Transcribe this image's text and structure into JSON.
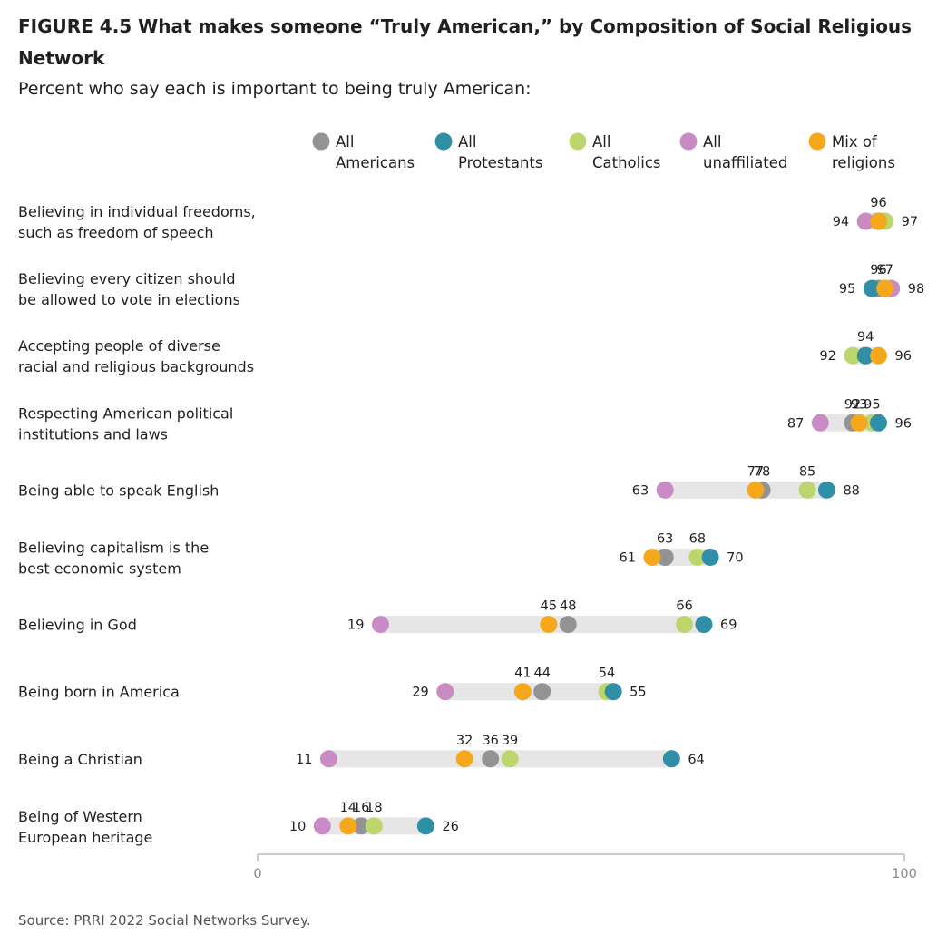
{
  "title": "FIGURE 4.5  What makes someone “Truly American,” by Composition of Social Religious Network",
  "subtitle": "Percent who say each is important to being truly American:",
  "source": "Source: PRRI 2022 Social Networks Survey.",
  "colors": {
    "range_bar": "#e6e6e6",
    "axis": "#bbbbbb"
  },
  "chart_data": {
    "type": "dot",
    "xlim": [
      0,
      100
    ],
    "x_ticks": [
      "0",
      "100"
    ],
    "legend_position": "top",
    "series": [
      {
        "key": "americans",
        "name": "All Americans",
        "legend_lines": [
          "All",
          "Americans"
        ],
        "color": "#939393"
      },
      {
        "key": "protestants",
        "name": "All Protestants",
        "legend_lines": [
          "All",
          "Protestants"
        ],
        "color": "#2f8fa6"
      },
      {
        "key": "catholics",
        "name": "All Catholics",
        "legend_lines": [
          "All",
          "Catholics"
        ],
        "color": "#bcd66d"
      },
      {
        "key": "unaffiliated",
        "name": "All unaffiliated",
        "legend_lines": [
          "All",
          "unaffiliated"
        ],
        "color": "#c98bc4"
      },
      {
        "key": "mix",
        "name": "Mix of religions",
        "legend_lines": [
          "Mix of",
          "religions"
        ],
        "color": "#f5a81c"
      }
    ],
    "rows": [
      {
        "label": [
          "Believing in individual freedoms,",
          "such as freedom of speech"
        ],
        "values": {
          "americans": 96,
          "protestants": 96,
          "catholics": 97,
          "unaffiliated": 94,
          "mix": 96
        },
        "labels": [
          {
            "text": "94",
            "value": 94,
            "pos": "left"
          },
          {
            "text": "96",
            "value": 96,
            "pos": "top"
          },
          {
            "text": "97",
            "value": 97,
            "pos": "right"
          }
        ]
      },
      {
        "label": [
          "Believing every citizen should",
          "be allowed to vote in elections"
        ],
        "values": {
          "americans": 96,
          "protestants": 95,
          "catholics": 97,
          "unaffiliated": 98,
          "mix": 97
        },
        "labels": [
          {
            "text": "95",
            "value": 95,
            "pos": "left"
          },
          {
            "text": "96",
            "value": 96,
            "pos": "top"
          },
          {
            "text": "97",
            "value": 97,
            "pos": "top"
          },
          {
            "text": "98",
            "value": 98,
            "pos": "right"
          }
        ]
      },
      {
        "label": [
          "Accepting people of diverse",
          "racial and religious backgrounds"
        ],
        "values": {
          "americans": 94,
          "protestants": 94,
          "catholics": 92,
          "unaffiliated": 94,
          "mix": 96
        },
        "labels": [
          {
            "text": "92",
            "value": 92,
            "pos": "left"
          },
          {
            "text": "94",
            "value": 94,
            "pos": "top"
          },
          {
            "text": "96",
            "value": 96,
            "pos": "right"
          }
        ]
      },
      {
        "label": [
          "Respecting American political",
          "institutions and laws"
        ],
        "values": {
          "americans": 92,
          "protestants": 96,
          "catholics": 95,
          "unaffiliated": 87,
          "mix": 93
        },
        "labels": [
          {
            "text": "87",
            "value": 87,
            "pos": "left"
          },
          {
            "text": "92",
            "value": 92,
            "pos": "top"
          },
          {
            "text": "93",
            "value": 93,
            "pos": "top"
          },
          {
            "text": "95",
            "value": 95,
            "pos": "top"
          },
          {
            "text": "96",
            "value": 96,
            "pos": "right"
          }
        ]
      },
      {
        "label": [
          "Being able to speak English"
        ],
        "values": {
          "americans": 78,
          "protestants": 88,
          "catholics": 85,
          "unaffiliated": 63,
          "mix": 77
        },
        "labels": [
          {
            "text": "63",
            "value": 63,
            "pos": "left"
          },
          {
            "text": "77",
            "value": 77,
            "pos": "top"
          },
          {
            "text": "78",
            "value": 78,
            "pos": "top"
          },
          {
            "text": "85",
            "value": 85,
            "pos": "top"
          },
          {
            "text": "88",
            "value": 88,
            "pos": "right"
          }
        ]
      },
      {
        "label": [
          "Believing capitalism is the",
          "best economic system"
        ],
        "values": {
          "americans": 63,
          "protestants": 70,
          "catholics": 68,
          "unaffiliated": 63,
          "mix": 61
        },
        "labels": [
          {
            "text": "61",
            "value": 61,
            "pos": "left"
          },
          {
            "text": "63",
            "value": 63,
            "pos": "top"
          },
          {
            "text": "68",
            "value": 68,
            "pos": "top"
          },
          {
            "text": "70",
            "value": 70,
            "pos": "right"
          }
        ]
      },
      {
        "label": [
          "Believing in God"
        ],
        "values": {
          "americans": 48,
          "protestants": 69,
          "catholics": 66,
          "unaffiliated": 19,
          "mix": 45
        },
        "labels": [
          {
            "text": "19",
            "value": 19,
            "pos": "left"
          },
          {
            "text": "45",
            "value": 45,
            "pos": "top"
          },
          {
            "text": "48",
            "value": 48,
            "pos": "top"
          },
          {
            "text": "66",
            "value": 66,
            "pos": "top"
          },
          {
            "text": "69",
            "value": 69,
            "pos": "right"
          }
        ]
      },
      {
        "label": [
          "Being born in America"
        ],
        "values": {
          "americans": 44,
          "protestants": 55,
          "catholics": 54,
          "unaffiliated": 29,
          "mix": 41
        },
        "labels": [
          {
            "text": "29",
            "value": 29,
            "pos": "left"
          },
          {
            "text": "41",
            "value": 41,
            "pos": "top"
          },
          {
            "text": "44",
            "value": 44,
            "pos": "top"
          },
          {
            "text": "54",
            "value": 54,
            "pos": "top"
          },
          {
            "text": "55",
            "value": 55,
            "pos": "right"
          }
        ]
      },
      {
        "label": [
          "Being a Christian"
        ],
        "values": {
          "americans": 36,
          "protestants": 64,
          "catholics": 39,
          "unaffiliated": 11,
          "mix": 32
        },
        "labels": [
          {
            "text": "11",
            "value": 11,
            "pos": "left"
          },
          {
            "text": "32",
            "value": 32,
            "pos": "top"
          },
          {
            "text": "36",
            "value": 36,
            "pos": "top"
          },
          {
            "text": "39",
            "value": 39,
            "pos": "top"
          },
          {
            "text": "64",
            "value": 64,
            "pos": "right"
          }
        ]
      },
      {
        "label": [
          "Being of Western",
          "European heritage"
        ],
        "values": {
          "americans": 16,
          "protestants": 26,
          "catholics": 18,
          "unaffiliated": 10,
          "mix": 14
        },
        "labels": [
          {
            "text": "10",
            "value": 10,
            "pos": "left"
          },
          {
            "text": "14",
            "value": 14,
            "pos": "top"
          },
          {
            "text": "16",
            "value": 16,
            "pos": "top"
          },
          {
            "text": "18",
            "value": 18,
            "pos": "top"
          },
          {
            "text": "26",
            "value": 26,
            "pos": "right"
          }
        ]
      }
    ]
  }
}
